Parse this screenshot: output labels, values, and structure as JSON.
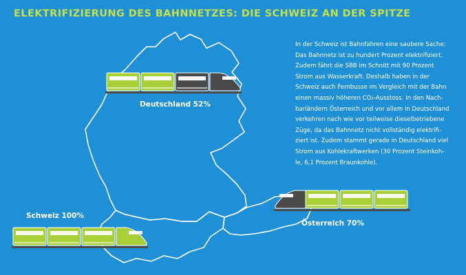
{
  "title": "ELEKTRIFIZIERUNG DES BAHNNETZES: DIE SCHWEIZ AN DER SPITZE",
  "info_lines": [
    "In der Schweiz ist Bahnfahren eine saubere Sache:",
    "Das Bahnnetz ist zu hundert Prozent elektrifiziert.",
    "Zudem fährt die SBB im Schnitt mit 90 Prozent",
    "Strom aus Wasserkraft. Deshalb haben in der",
    "Schweiz auch Fernbusse im Vergleich mit der Bahn",
    "einen massiv höheren CO₂-Ausstoss. In den Nach-",
    "barländern Österreich und vor allem in Deutschland",
    "verkehren nach wie vor teilweise dieselbetriebene",
    "Züge, da das Bahnnetz nicht vollständig elektrifi-",
    "ziert ist. Zudem stammt gerade in Deutschland viel",
    "Strom aus Kohlekraftwerken (30 Prozent Steinkoh-",
    "le, 6,1 Prozent Braunkohle)."
  ],
  "colors": {
    "background": "#1f8fd6",
    "electric": "#a9cf38",
    "diesel": "#4a4a4a",
    "title": "#c4e04a",
    "border": "#ffffff"
  },
  "chart_data": {
    "type": "bar",
    "title": "ELEKTRIFIZIERUNG DES BAHNNETZES: DIE SCHWEIZ AN DER SPITZE",
    "unit": "%",
    "categories": [
      "Deutschland",
      "Schweiz",
      "Österreich"
    ],
    "values": [
      52,
      100,
      70
    ],
    "labels": [
      "Deutschland 52%",
      "Schweiz 100%",
      "Österreich 70%"
    ],
    "ylim": [
      0,
      100
    ]
  }
}
